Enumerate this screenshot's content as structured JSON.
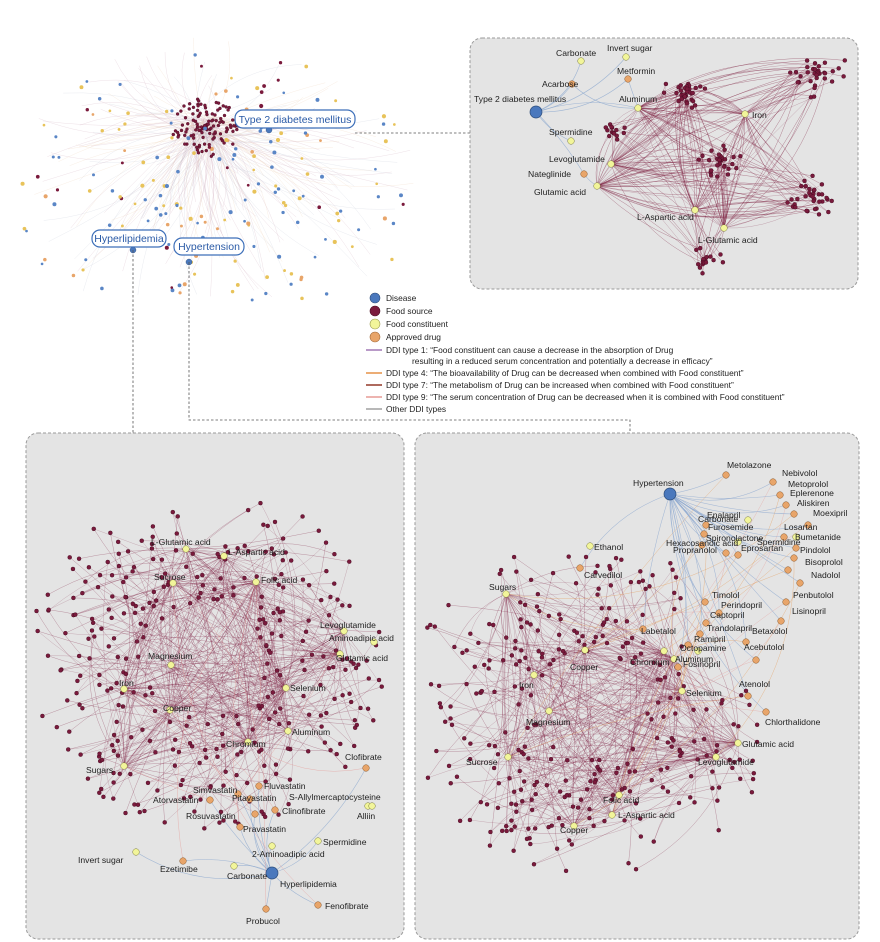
{
  "overview": {
    "callouts": [
      "Type 2 diabetes mellitus",
      "Hyperlipidemia",
      "Hypertension"
    ]
  },
  "legend": {
    "nodes": [
      {
        "label": "Disease",
        "color": "#4a78bd"
      },
      {
        "label": "Food source",
        "color": "#7a1a3c"
      },
      {
        "label": "Food constituent",
        "color": "#f2f59a"
      },
      {
        "label": "Approved drug",
        "color": "#e8a56a"
      }
    ],
    "edges": [
      {
        "label": "DDI type 1: “Food constituent can cause a decrease in the absorption of Drug",
        "label2": "resulting in a reduced serum concentration and potentially a decrease in efficacy”",
        "color": "#9b6fb0"
      },
      {
        "label": "DDI type 4: “The bioavailability of Drug can be decreased when combined with Food constituent”",
        "color": "#e38a3a"
      },
      {
        "label": "DDI type 7: “The metabolism of Drug can be increased when combined with Food constituent”",
        "color": "#8b2b1a"
      },
      {
        "label": "DDI type 9: “The serum concentration of Drug can be decreased when it is combined with Food constituent”",
        "color": "#e5938f"
      },
      {
        "label": "Other DDI types",
        "color": "#9a9a9a"
      }
    ]
  },
  "panel_diabetes": {
    "disease": "Type 2 diabetes mellitus",
    "drugs": [
      "Acarbose",
      "Metformin",
      "Nateglinide"
    ],
    "constituents": [
      "Carbonate",
      "Invert sugar",
      "Aluminum",
      "Spermidine",
      "Levoglutamide",
      "Glutamic acid",
      "L-Aspartic acid",
      "L-Glutamic acid",
      "Iron"
    ]
  },
  "panel_hyperlipidemia": {
    "disease": "Hyperlipidemia",
    "drugs": [
      "Fluvastatin",
      "Simvastatin",
      "Pitavastatin",
      "Atorvastatin",
      "Rosuvastatin",
      "Clinofibrate",
      "Pravastatin",
      "Clofibrate",
      "Ezetimibe",
      "Fenofibrate",
      "Probucol"
    ],
    "constituents": [
      "L-Glutamic acid",
      "L-Aspartic acid",
      "Sucrose",
      "Folic acid",
      "Levoglutamide",
      "Aminoadipic acid",
      "Glutamic acid",
      "Magnesium",
      "Iron",
      "Selenium",
      "Copper",
      "Aluminum",
      "Chromium",
      "Sugars",
      "S-Allylmercaptocysteine",
      "Alliin",
      "Spermidine",
      "2-Aminoadipic acid",
      "Invert sugar",
      "Carbonate"
    ]
  },
  "panel_hypertension": {
    "disease": "Hypertension",
    "drugs": [
      "Metolazone",
      "Nebivolol",
      "Metoprolol",
      "Eplerenone",
      "Aliskiren",
      "Moexipril",
      "Enalapril",
      "Furosemide",
      "Losartan",
      "Spironolactone",
      "Bumetanide",
      "Propranolol",
      "Eprosartan",
      "Pindolol",
      "Bisoprolol",
      "Nadolol",
      "Penbutolol",
      "Timolol",
      "Perindopril",
      "Lisinopril",
      "Captopril",
      "Trandolapril",
      "Betaxolol",
      "Ramipril",
      "Acebutolol",
      "Labetalol",
      "Fosinopril",
      "Atenolol",
      "Chlorthalidone",
      "Carvedilol"
    ],
    "constituents": [
      "Carbonate",
      "Spermidine",
      "Hexacosanoic acid",
      "Ethanol",
      "Sugars",
      "Octopamine",
      "Chromium",
      "Aluminum",
      "Copper",
      "Iron",
      "Selenium",
      "Magnesium",
      "Glutamic acid",
      "Levoglutamide",
      "Sucrose",
      "Folic acid",
      "L-Aspartic acid"
    ]
  }
}
